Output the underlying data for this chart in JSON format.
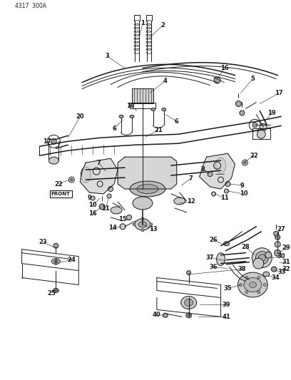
{
  "diagram_id": "4317  300A",
  "background_color": "#ffffff",
  "line_color": "#1a1a1a",
  "figsize": [
    4.08,
    5.33
  ],
  "dpi": 100
}
